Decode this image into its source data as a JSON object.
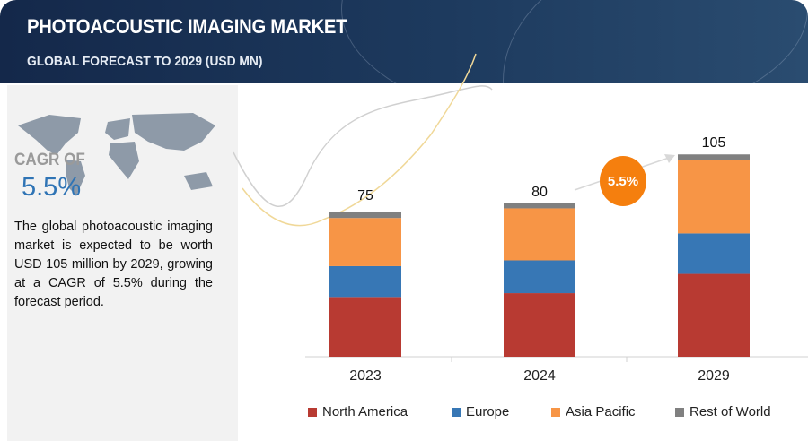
{
  "header": {
    "title": "PHOTOACOUSTIC IMAGING MARKET",
    "subtitle": "GLOBAL FORECAST TO 2029 (USD MN)"
  },
  "sidebar": {
    "cagr_label": "CAGR OF",
    "cagr_value": "5.5%",
    "description": "The global photoacoustic imaging market is expected to be worth USD 105 million by 2029, growing at a CAGR of 5.5% during the forecast period."
  },
  "chart_data": {
    "type": "bar",
    "stacked": true,
    "categories": [
      "2023",
      "2024",
      "2029"
    ],
    "totals": [
      "75",
      "80",
      "105"
    ],
    "series": [
      {
        "name": "North America",
        "color": "#b83a32",
        "values": [
          31,
          33,
          43
        ]
      },
      {
        "name": "Europe",
        "color": "#3777b5",
        "values": [
          16,
          17,
          21
        ]
      },
      {
        "name": "Asia Pacific",
        "color": "#f79546",
        "values": [
          25,
          27,
          38
        ]
      },
      {
        "name": "Rest of World",
        "color": "#808080",
        "values": [
          3,
          3,
          3
        ]
      }
    ],
    "annotation": "5.5%",
    "legend_position": "bottom",
    "grid": false
  }
}
